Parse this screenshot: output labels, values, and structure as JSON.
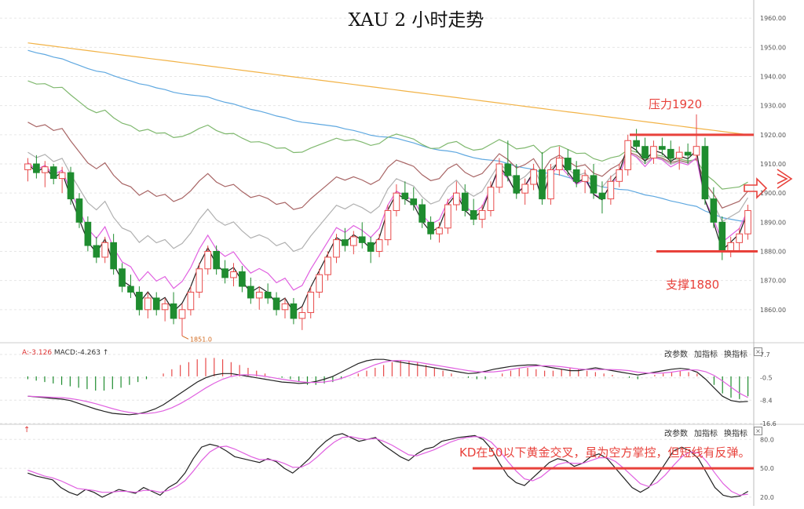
{
  "title": "XAU 2 小时走势",
  "macd_legend": {
    "a": "A:-3.126",
    "macd": "MACD:-4.263"
  },
  "kd_legend_arrow": "↑",
  "panel_buttons": {
    "b1": "改参数",
    "b2": "加指标",
    "b3": "换指标",
    "close": "×"
  },
  "annotations": {
    "resistance": "压力1920",
    "support": "支撑1880",
    "kd_note": "KD在50以下黄金交叉，虽为空方掌控，但短线有反弹。",
    "low_label": "1851.0"
  },
  "colors": {
    "up": "#e84b4b",
    "down": "#1f8c2f",
    "ma5": "#222222",
    "ma10": "#e060e0",
    "ma20": "#b0b0b0",
    "ma30": "#a86565",
    "ma60": "#7fb86e",
    "ma120": "#5fa8e0",
    "ma250": "#f2b347",
    "line_red": "#e8413b"
  },
  "chart_data": [
    {
      "type": "candlestick",
      "title": "XAU 2 小时走势",
      "ylim": [
        1850,
        1963
      ],
      "y_ticks": [
        "1960.00",
        "1950.00",
        "1940.00",
        "1930.00",
        "1920.00",
        "1910.00",
        "1900.00",
        "1890.00",
        "1880.00",
        "1870.00",
        "1860.00"
      ],
      "y_tick_values": [
        1960,
        1950,
        1940,
        1930,
        1920,
        1910,
        1900,
        1890,
        1880,
        1870,
        1860
      ],
      "candles": [
        [
          1908,
          1912,
          1904,
          1910
        ],
        [
          1910,
          1913,
          1905,
          1907
        ],
        [
          1907,
          1911,
          1902,
          1909
        ],
        [
          1909,
          1910,
          1903,
          1905
        ],
        [
          1905,
          1909,
          1900,
          1907
        ],
        [
          1907,
          1909,
          1896,
          1898
        ],
        [
          1898,
          1900,
          1888,
          1890
        ],
        [
          1890,
          1892,
          1880,
          1882
        ],
        [
          1882,
          1885,
          1876,
          1878
        ],
        [
          1878,
          1885,
          1876,
          1883
        ],
        [
          1883,
          1886,
          1872,
          1874
        ],
        [
          1874,
          1876,
          1866,
          1868
        ],
        [
          1868,
          1872,
          1864,
          1866
        ],
        [
          1866,
          1868,
          1858,
          1860
        ],
        [
          1860,
          1866,
          1857,
          1864
        ],
        [
          1864,
          1866,
          1858,
          1860
        ],
        [
          1860,
          1864,
          1856,
          1862
        ],
        [
          1862,
          1866,
          1855,
          1857
        ],
        [
          1857,
          1862,
          1851,
          1860
        ],
        [
          1860,
          1868,
          1858,
          1866
        ],
        [
          1866,
          1876,
          1864,
          1874
        ],
        [
          1874,
          1882,
          1872,
          1880
        ],
        [
          1880,
          1882,
          1872,
          1874
        ],
        [
          1874,
          1877,
          1869,
          1871
        ],
        [
          1871,
          1876,
          1868,
          1873
        ],
        [
          1873,
          1875,
          1866,
          1868
        ],
        [
          1868,
          1871,
          1862,
          1864
        ],
        [
          1864,
          1868,
          1860,
          1866
        ],
        [
          1866,
          1869,
          1862,
          1864
        ],
        [
          1864,
          1866,
          1858,
          1860
        ],
        [
          1860,
          1864,
          1857,
          1862
        ],
        [
          1862,
          1864,
          1855,
          1857
        ],
        [
          1857,
          1861,
          1853,
          1859
        ],
        [
          1859,
          1868,
          1857,
          1866
        ],
        [
          1866,
          1874,
          1864,
          1872
        ],
        [
          1872,
          1880,
          1870,
          1878
        ],
        [
          1878,
          1886,
          1876,
          1884
        ],
        [
          1884,
          1888,
          1880,
          1882
        ],
        [
          1882,
          1887,
          1879,
          1885
        ],
        [
          1885,
          1890,
          1881,
          1883
        ],
        [
          1883,
          1885,
          1876,
          1880
        ],
        [
          1880,
          1886,
          1878,
          1884
        ],
        [
          1884,
          1896,
          1882,
          1894
        ],
        [
          1894,
          1903,
          1892,
          1900
        ],
        [
          1900,
          1904,
          1896,
          1898
        ],
        [
          1898,
          1902,
          1894,
          1896
        ],
        [
          1896,
          1898,
          1888,
          1890
        ],
        [
          1890,
          1892,
          1884,
          1886
        ],
        [
          1886,
          1890,
          1883,
          1888
        ],
        [
          1888,
          1898,
          1886,
          1896
        ],
        [
          1896,
          1904,
          1894,
          1900
        ],
        [
          1900,
          1903,
          1892,
          1894
        ],
        [
          1894,
          1898,
          1889,
          1891
        ],
        [
          1891,
          1896,
          1888,
          1894
        ],
        [
          1894,
          1904,
          1892,
          1902
        ],
        [
          1902,
          1912,
          1900,
          1910
        ],
        [
          1910,
          1918,
          1904,
          1906
        ],
        [
          1906,
          1910,
          1898,
          1900
        ],
        [
          1900,
          1905,
          1896,
          1903
        ],
        [
          1903,
          1910,
          1901,
          1908
        ],
        [
          1908,
          1914,
          1896,
          1898
        ],
        [
          1898,
          1910,
          1896,
          1908
        ],
        [
          1908,
          1916,
          1906,
          1912
        ],
        [
          1912,
          1915,
          1906,
          1908
        ],
        [
          1908,
          1911,
          1902,
          1904
        ],
        [
          1904,
          1908,
          1900,
          1906
        ],
        [
          1906,
          1910,
          1898,
          1900
        ],
        [
          1900,
          1904,
          1893,
          1898
        ],
        [
          1898,
          1906,
          1896,
          1904
        ],
        [
          1904,
          1910,
          1902,
          1908
        ],
        [
          1908,
          1920,
          1906,
          1918
        ],
        [
          1918,
          1922,
          1914,
          1916
        ],
        [
          1916,
          1919,
          1910,
          1912
        ],
        [
          1912,
          1918,
          1910,
          1916
        ],
        [
          1916,
          1919,
          1913,
          1915
        ],
        [
          1915,
          1918,
          1910,
          1912
        ],
        [
          1912,
          1916,
          1908,
          1914
        ],
        [
          1914,
          1917,
          1910,
          1913
        ],
        [
          1913,
          1927,
          1911,
          1916
        ],
        [
          1916,
          1919,
          1896,
          1898
        ],
        [
          1898,
          1902,
          1888,
          1890
        ],
        [
          1890,
          1892,
          1877,
          1880
        ],
        [
          1880,
          1885,
          1878,
          1883
        ],
        [
          1883,
          1888,
          1880,
          1886
        ],
        [
          1886,
          1896,
          1884,
          1894
        ]
      ],
      "ma_series": [
        {
          "key": "ma250",
          "start": 1951.5,
          "end": 1920
        },
        {
          "key": "ma120",
          "start": 1951,
          "end": 1890
        },
        {
          "key": "ma60",
          "start": 1948,
          "end": 1907
        },
        {
          "key": "ma30",
          "start": 1936,
          "end": 1906
        },
        {
          "key": "ma20",
          "start": 1920,
          "end": 1905
        },
        {
          "key": "ma10",
          "start": 1912,
          "end": 1895
        },
        {
          "key": "ma5",
          "start": 1910,
          "end": 1886
        }
      ],
      "resistance_level": 1920,
      "support_level": 1880,
      "low": 1851.0
    },
    {
      "type": "bar",
      "name": "MACD",
      "ylim": [
        -16.6,
        7.7
      ],
      "y_ticks": [
        "7.7",
        "-0.5",
        "-8.4",
        "-16.6"
      ],
      "y_tick_values": [
        7.7,
        -0.5,
        -8.4,
        -16.6
      ],
      "hist": [
        -1,
        -1.5,
        -2,
        -2.5,
        -3,
        -3.5,
        -4,
        -4.5,
        -5,
        -5,
        -4.5,
        -4,
        -3,
        -2,
        -1,
        0,
        1,
        2.5,
        4,
        5,
        6,
        6.5,
        6.5,
        6,
        5,
        4,
        3,
        2,
        1,
        0,
        -0.5,
        -1,
        -2,
        -3,
        -3,
        -2.5,
        -2,
        -1,
        0,
        1,
        2,
        3,
        4,
        5,
        5.5,
        5.5,
        5,
        4,
        3,
        2,
        1,
        0,
        -0.5,
        -1,
        -1,
        0,
        1,
        2,
        3,
        3,
        2.5,
        2,
        2,
        2.5,
        3,
        2.5,
        2,
        1.5,
        1,
        0.5,
        0,
        -0.5,
        -1,
        0,
        0.5,
        1,
        1.5,
        2,
        1.5,
        1,
        0,
        -3,
        -6,
        -7.5,
        -8,
        -7
      ],
      "dif": [
        -7,
        -7.2,
        -7.5,
        -7.8,
        -8,
        -8.5,
        -9.5,
        -10.5,
        -11.5,
        -12.3,
        -13,
        -13.3,
        -13.5,
        -13.2,
        -12.5,
        -11.5,
        -10,
        -8,
        -6,
        -4,
        -2,
        -0.5,
        0.5,
        1,
        1,
        0.5,
        0,
        -0.5,
        -1,
        -1.5,
        -2,
        -2.2,
        -2.5,
        -2.3,
        -1.8,
        -1,
        0,
        1.5,
        3,
        4.5,
        5.5,
        6,
        6,
        5.5,
        5,
        4.5,
        4,
        3.5,
        3,
        2.5,
        2,
        1.5,
        1,
        1.2,
        1.8,
        2.5,
        3,
        3.5,
        3.8,
        4,
        4,
        3.5,
        3,
        2.5,
        2,
        2,
        2.5,
        3,
        2.5,
        2,
        1.5,
        1,
        0.5,
        1,
        1.5,
        2,
        2.5,
        2.8,
        2.5,
        1.5,
        -1,
        -4,
        -7,
        -8.5,
        -9,
        -8.8
      ]
    },
    {
      "type": "line",
      "name": "KD",
      "ylim": [
        15,
        90
      ],
      "y_ticks": [
        "80.0",
        "50.0",
        "20.0"
      ],
      "y_tick_values": [
        80,
        50,
        20
      ],
      "k": [
        45,
        42,
        40,
        38,
        30,
        25,
        22,
        28,
        25,
        20,
        24,
        28,
        26,
        24,
        30,
        26,
        22,
        30,
        35,
        45,
        60,
        72,
        75,
        73,
        68,
        62,
        60,
        58,
        56,
        60,
        57,
        50,
        45,
        52,
        60,
        70,
        78,
        84,
        86,
        82,
        78,
        80,
        82,
        74,
        68,
        62,
        58,
        65,
        70,
        72,
        78,
        80,
        82,
        83,
        84,
        80,
        70,
        55,
        42,
        35,
        32,
        40,
        48,
        56,
        60,
        58,
        52,
        55,
        62,
        65,
        60,
        50,
        40,
        30,
        25,
        30,
        42,
        55,
        68,
        72,
        68,
        60,
        45,
        30,
        22,
        20,
        21,
        26
      ],
      "d": [
        48,
        45,
        42,
        40,
        37,
        33,
        29,
        28,
        27,
        25,
        25,
        26,
        26,
        25,
        27,
        27,
        25,
        27,
        31,
        37,
        47,
        58,
        67,
        72,
        73,
        70,
        66,
        62,
        59,
        59,
        58,
        55,
        51,
        51,
        55,
        62,
        70,
        77,
        82,
        83,
        81,
        80,
        81,
        78,
        74,
        69,
        64,
        63,
        66,
        69,
        73,
        77,
        80,
        82,
        83,
        82,
        77,
        68,
        57,
        47,
        39,
        37,
        41,
        48,
        54,
        56,
        55,
        55,
        58,
        61,
        61,
        57,
        50,
        42,
        34,
        31,
        35,
        43,
        53,
        62,
        67,
        66,
        57,
        45,
        34,
        26,
        22,
        23
      ]
    }
  ]
}
